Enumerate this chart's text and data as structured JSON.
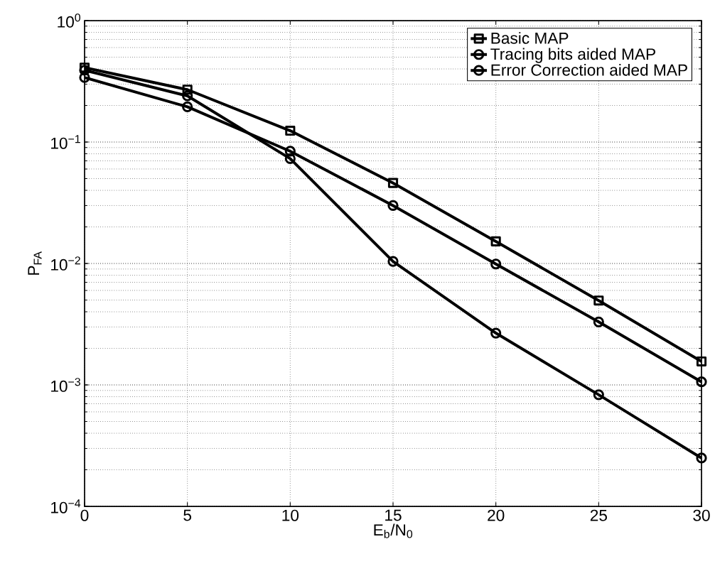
{
  "chart_data": {
    "type": "line",
    "xlabel": "E$_{b}$/N$_{0}$",
    "ylabel": "P$_{FA}$",
    "x": [
      0,
      5,
      10,
      15,
      20,
      25,
      30
    ],
    "series": [
      {
        "name": "Basic MAP",
        "color": "#000000",
        "marker": "square",
        "values": [
          0.41,
          0.27,
          0.124,
          0.046,
          0.0152,
          0.00495,
          0.00156
        ]
      },
      {
        "name": "Tracing bits aided MAP",
        "color": "#000000",
        "marker": "circle",
        "values": [
          0.34,
          0.195,
          0.084,
          0.03,
          0.0099,
          0.0033,
          0.00106
        ]
      },
      {
        "name": "Error Correction aided MAP",
        "color": "#000000",
        "marker": "circle",
        "values": [
          0.39,
          0.24,
          0.073,
          0.0104,
          0.00267,
          0.00083,
          0.00025
        ]
      }
    ],
    "log": "y",
    "xlim": [
      0,
      30
    ],
    "ylim": [
      0.0001,
      1
    ],
    "xticks": [
      0,
      5,
      10,
      15,
      20,
      25,
      30
    ],
    "yticks": [
      {
        "value": 0.0001,
        "label": "10$^{−4}$"
      },
      {
        "value": 0.001,
        "label": "10$^{−3}$"
      },
      {
        "value": 0.01,
        "label": "10$^{−2}$"
      },
      {
        "value": 0.1,
        "label": "10$^{−1}$"
      },
      {
        "value": 1,
        "label": "10$^{0}$"
      }
    ],
    "grid": true,
    "legend": "top right",
    "line_style": "solid"
  }
}
